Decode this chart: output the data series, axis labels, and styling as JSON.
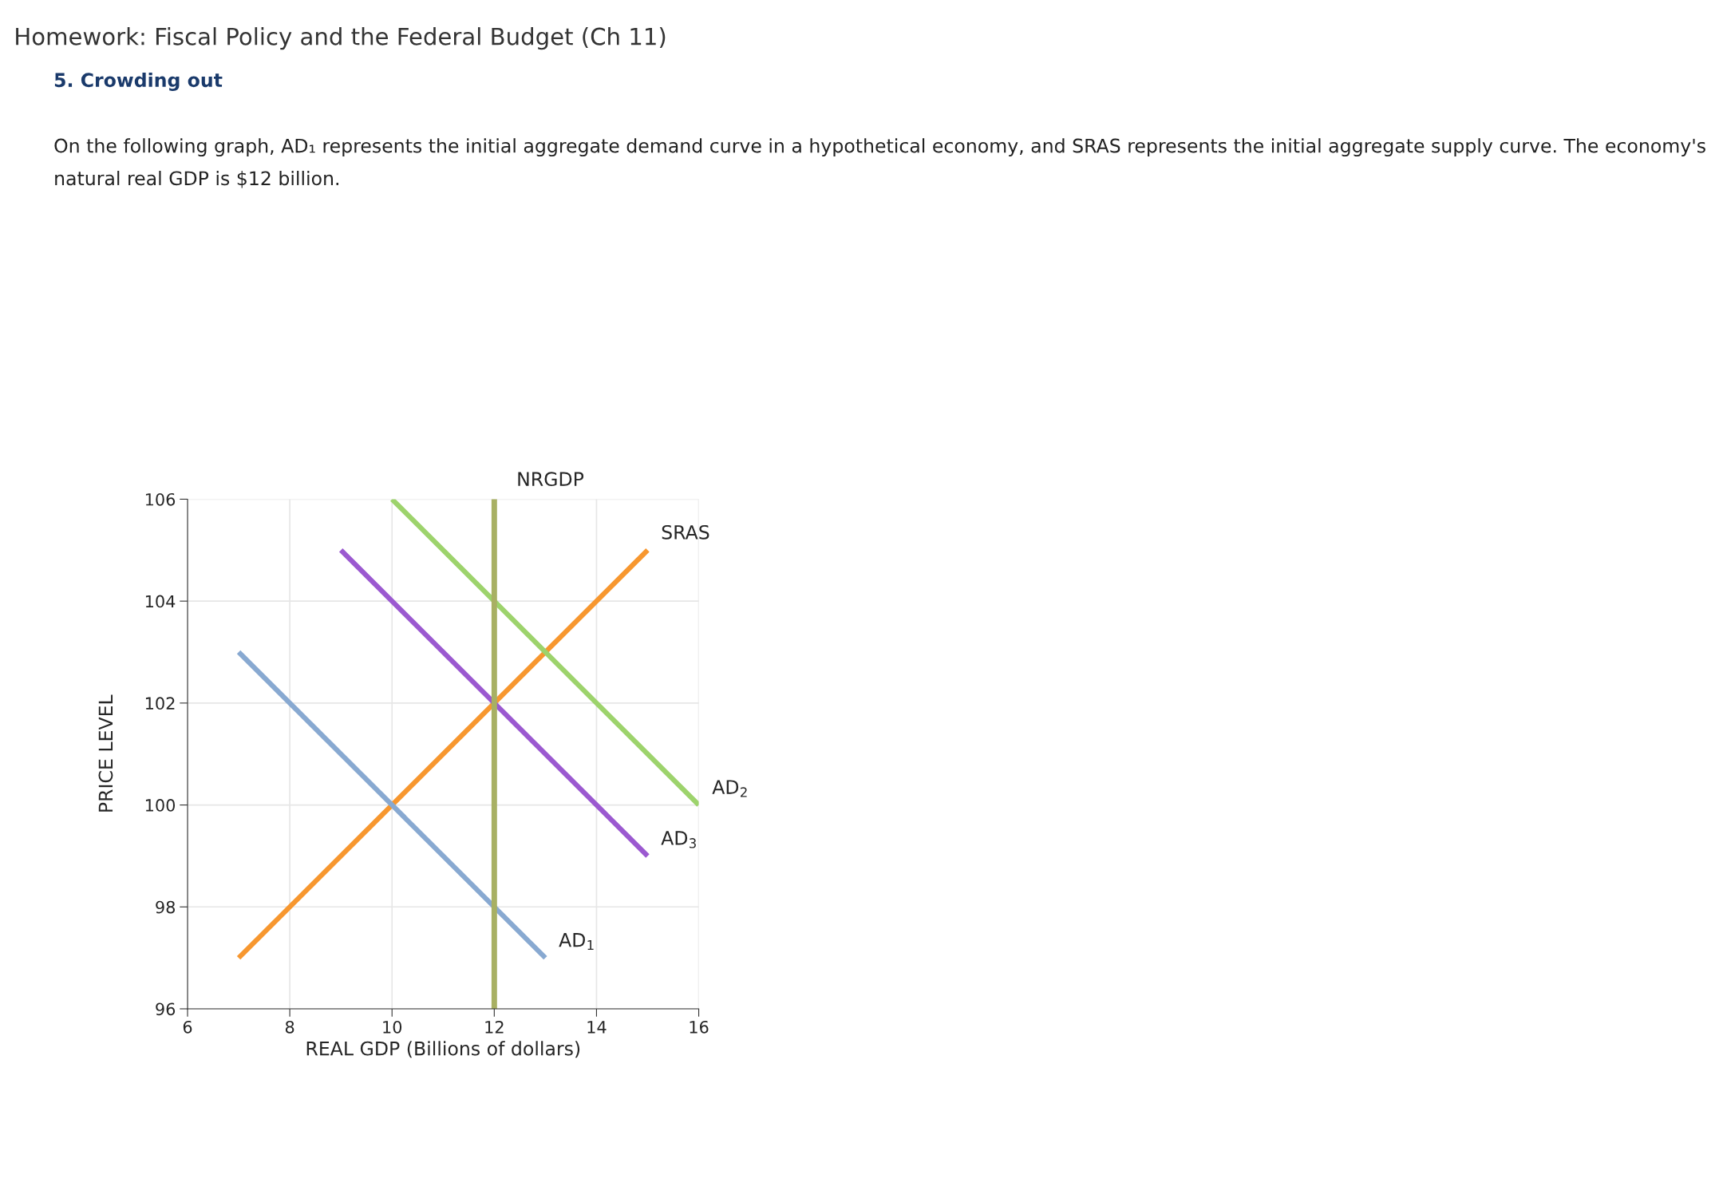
{
  "chart_data": {
    "type": "line",
    "title": "Homework: Fiscal Policy and the Federal Budget (Ch 11)",
    "subtitle": "5. Crowding out",
    "annotations": [
      "On the following graph, AD₁ represents the initial aggregate demand curve in a hypothetical economy, and SRAS represents the initial aggregate supply curve. The economy's natural real GDP is $12 billion."
    ],
    "xlabel": "REAL GDP (Billions of dollars)",
    "ylabel": "PRICE LEVEL",
    "series": [
      {
        "name": "SRAS",
        "color": "#f7972f",
        "x": [
          7,
          15
        ],
        "values": [
          97,
          105
        ]
      },
      {
        "name": "AD$_{1}$",
        "color": "#88a9d1",
        "x": [
          7,
          13
        ],
        "values": [
          103,
          97
        ]
      },
      {
        "name": "AD$_{2}$",
        "color": "#9dd36c",
        "x": [
          10,
          16
        ],
        "values": [
          106,
          100
        ]
      },
      {
        "name": "AD$_{3}$",
        "color": "#9b59d0",
        "x": [
          9,
          15
        ],
        "values": [
          105,
          99
        ]
      }
    ],
    "ref_lines": [
      {
        "axis": "x",
        "value": 12,
        "label": "NRGDP",
        "color": "#a8b063"
      }
    ],
    "xlim": [
      6,
      16
    ],
    "xticks": [
      6,
      8,
      10,
      12,
      14,
      16
    ],
    "ylim": [
      96,
      106
    ],
    "yticks": [
      96,
      98,
      100,
      102,
      104,
      106
    ],
    "grid": true,
    "legend": false
  }
}
